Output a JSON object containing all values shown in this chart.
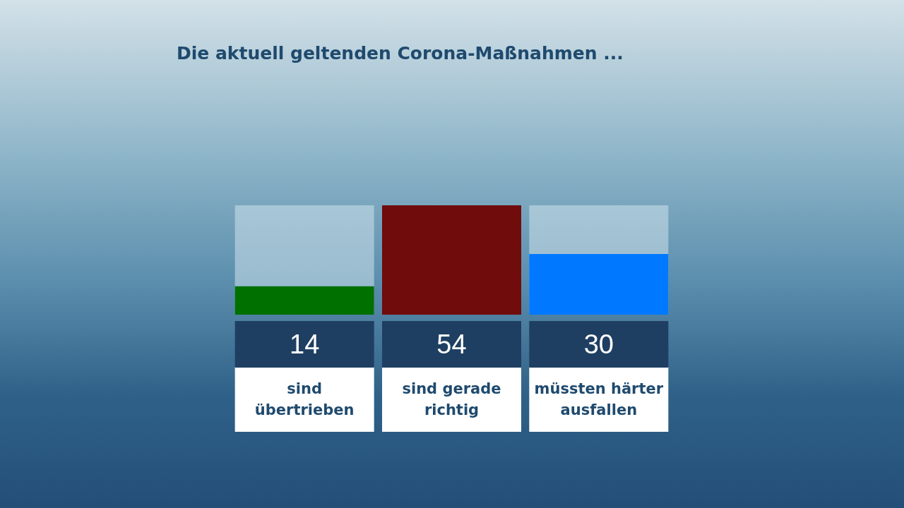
{
  "chart_data": {
    "type": "bar",
    "title": "Die aktuell geltenden Corona-Maßnahmen ...",
    "categories": [
      "sind\nübertrieben",
      "sind gerade\nrichtig",
      "müssten härter\nausfallen"
    ],
    "values": [
      14,
      54,
      30
    ],
    "colors": [
      "#007000",
      "#700c0c",
      "#0078ff"
    ],
    "data_labels": true
  }
}
